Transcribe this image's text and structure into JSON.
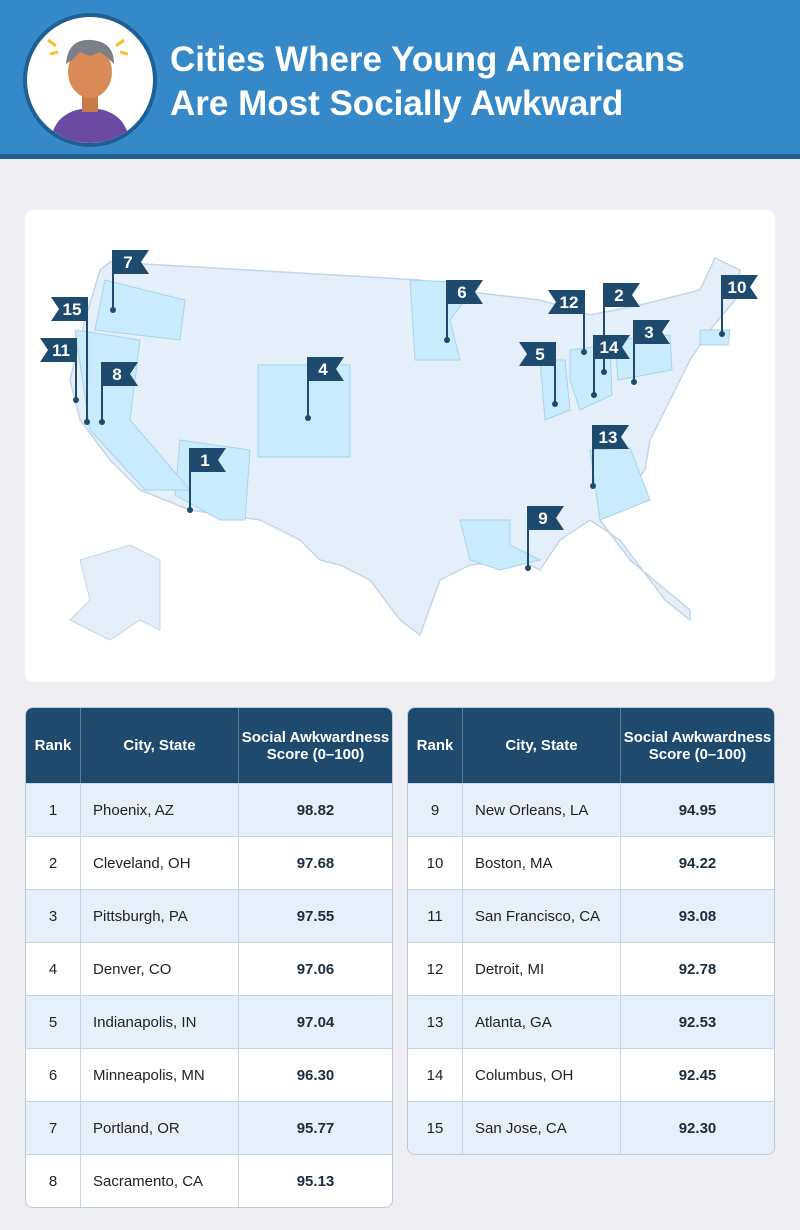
{
  "header": {
    "title_lines": [
      "Cities Where Young Americans",
      "Are Most Socially Awkward"
    ]
  },
  "map": {
    "flags": [
      "1",
      "2",
      "3",
      "4",
      "5",
      "6",
      "7",
      "8",
      "9",
      "10",
      "11",
      "12",
      "13",
      "14",
      "15"
    ]
  },
  "tables": [
    {
      "columns": [
        "Rank",
        "City, State",
        "Social Awkwardness Score (0–100)"
      ],
      "rows": [
        [
          "1",
          "Phoenix, AZ",
          "98.82"
        ],
        [
          "2",
          "Cleveland, OH",
          "97.68"
        ],
        [
          "3",
          "Pittsburgh, PA",
          "97.55"
        ],
        [
          "4",
          "Denver, CO",
          "97.06"
        ],
        [
          "5",
          "Indianapolis, IN",
          "97.04"
        ],
        [
          "6",
          "Minneapolis, MN",
          "96.30"
        ],
        [
          "7",
          "Portland, OR",
          "95.77"
        ],
        [
          "8",
          "Sacramento, CA",
          "95.13"
        ]
      ]
    },
    {
      "columns": [
        "Rank",
        "City, State",
        "Social Awkwardness Score (0–100)"
      ],
      "rows": [
        [
          "9",
          "New Orleans, LA",
          "94.95"
        ],
        [
          "10",
          "Boston, MA",
          "94.22"
        ],
        [
          "11",
          "San Francisco, CA",
          "93.08"
        ],
        [
          "12",
          "Detroit, MI",
          "92.78"
        ],
        [
          "13",
          "Atlanta, GA",
          "92.53"
        ],
        [
          "14",
          "Columbus, OH",
          "92.45"
        ],
        [
          "15",
          "San Jose, CA",
          "92.30"
        ]
      ]
    }
  ]
}
